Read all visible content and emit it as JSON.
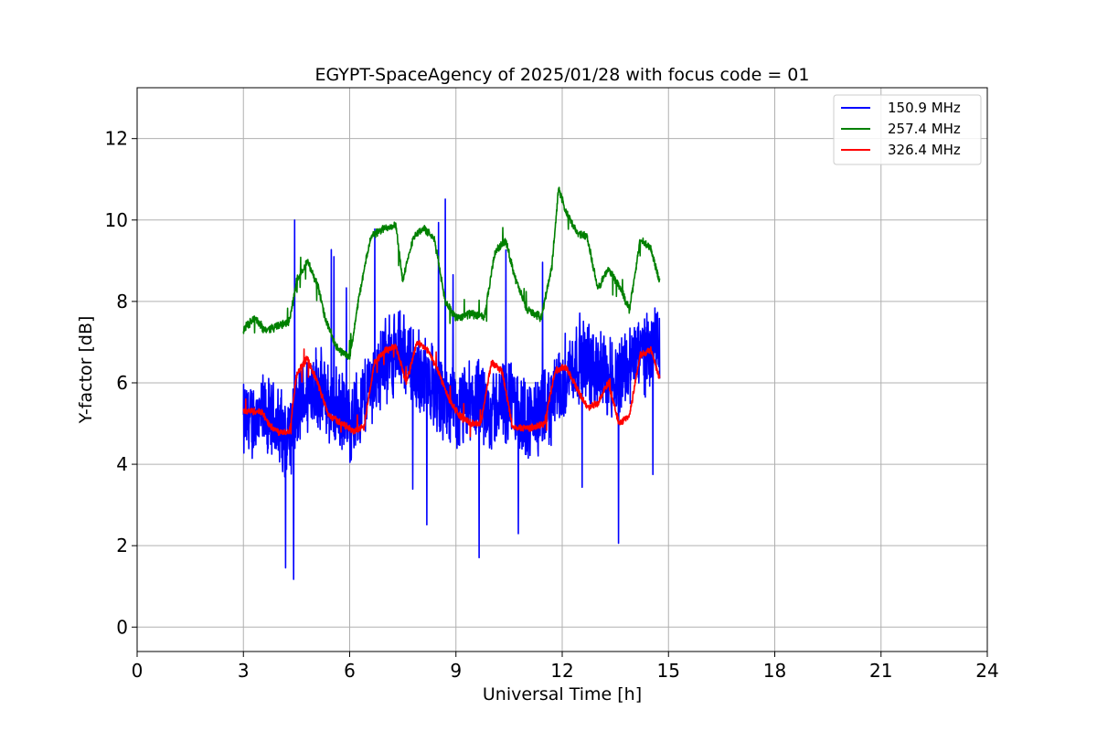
{
  "chart_data": {
    "type": "line",
    "title": "EGYPT-SpaceAgency of 2025/01/28 with focus code = 01",
    "xlabel": "Universal Time [h]",
    "ylabel": "Y-factor [dB]",
    "xlim": [
      0,
      24
    ],
    "ylim": [
      -0.6,
      13.25
    ],
    "xticks": [
      "0",
      "3",
      "6",
      "9",
      "12",
      "15",
      "18",
      "21",
      "24"
    ],
    "yticks": [
      "0",
      "2",
      "4",
      "6",
      "8",
      "10",
      "12"
    ],
    "grid": true,
    "legend_position": "top-right",
    "series": [
      {
        "name": "150.9 MHz",
        "color": "#0000ff",
        "noise": 1.2,
        "x": [
          3.0,
          3.5,
          4.0,
          4.3,
          4.6,
          5.0,
          5.5,
          6.0,
          6.5,
          7.0,
          7.5,
          8.0,
          8.5,
          9.0,
          9.5,
          10.0,
          10.5,
          11.0,
          11.5,
          12.0,
          12.5,
          13.0,
          13.5,
          14.0,
          14.5,
          14.75
        ],
        "y": [
          5.0,
          5.2,
          4.9,
          4.7,
          5.5,
          6.0,
          5.4,
          5.0,
          5.8,
          6.6,
          6.8,
          6.2,
          5.8,
          5.2,
          5.6,
          5.3,
          5.6,
          5.1,
          5.2,
          6.1,
          6.6,
          6.3,
          6.1,
          6.6,
          6.9,
          6.8
        ]
      },
      {
        "name": "257.4 MHz",
        "color": "#008000",
        "noise": 0.12,
        "x": [
          3.0,
          3.3,
          3.6,
          4.0,
          4.3,
          4.5,
          4.8,
          5.1,
          5.3,
          5.6,
          6.0,
          6.3,
          6.6,
          7.0,
          7.3,
          7.5,
          7.8,
          8.1,
          8.4,
          8.7,
          9.0,
          9.4,
          9.8,
          10.1,
          10.4,
          10.7,
          11.0,
          11.4,
          11.7,
          11.9,
          12.1,
          12.4,
          12.7,
          13.0,
          13.3,
          13.6,
          13.9,
          14.2,
          14.5,
          14.75
        ],
        "y": [
          7.3,
          7.6,
          7.3,
          7.4,
          7.5,
          8.5,
          9.0,
          8.4,
          7.6,
          6.9,
          6.6,
          8.3,
          9.6,
          9.8,
          9.9,
          8.5,
          9.6,
          9.8,
          9.5,
          8.0,
          7.6,
          7.7,
          7.6,
          9.2,
          9.5,
          8.5,
          7.8,
          7.6,
          8.8,
          10.8,
          10.2,
          9.7,
          9.6,
          8.3,
          8.8,
          8.4,
          7.8,
          9.5,
          9.3,
          8.5
        ]
      },
      {
        "name": "326.4 MHz",
        "color": "#ff0000",
        "noise": 0.1,
        "x": [
          3.0,
          3.5,
          3.8,
          4.0,
          4.3,
          4.5,
          4.8,
          5.1,
          5.4,
          5.8,
          6.1,
          6.4,
          6.7,
          7.0,
          7.3,
          7.6,
          7.9,
          8.2,
          8.5,
          8.8,
          9.1,
          9.4,
          9.7,
          10.0,
          10.3,
          10.6,
          10.9,
          11.2,
          11.5,
          11.8,
          12.1,
          12.4,
          12.7,
          13.0,
          13.3,
          13.6,
          13.9,
          14.2,
          14.5,
          14.75
        ],
        "y": [
          5.3,
          5.3,
          4.9,
          4.8,
          4.8,
          6.2,
          6.6,
          6.0,
          5.2,
          5.0,
          4.8,
          4.9,
          6.5,
          6.8,
          6.9,
          6.0,
          7.0,
          6.8,
          6.3,
          5.6,
          5.2,
          5.0,
          5.0,
          6.5,
          6.3,
          4.9,
          4.9,
          4.9,
          5.0,
          6.3,
          6.4,
          5.9,
          5.4,
          5.5,
          6.0,
          5.0,
          5.2,
          6.7,
          6.8,
          6.1
        ]
      }
    ]
  }
}
